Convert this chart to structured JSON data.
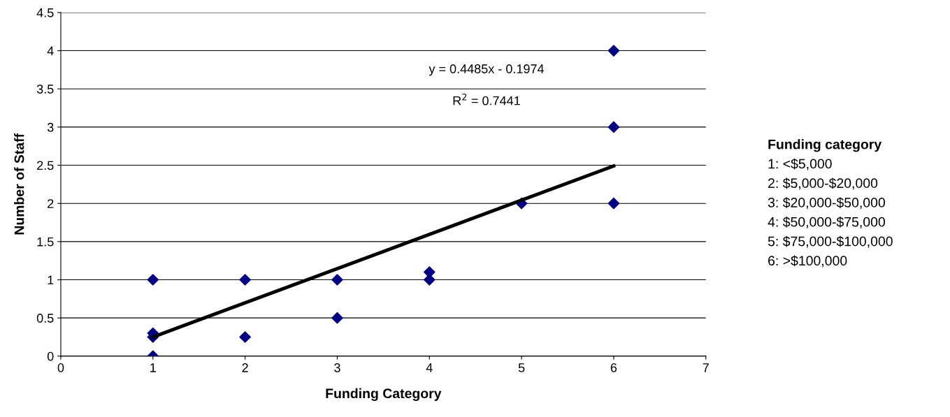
{
  "chart_data": {
    "type": "scatter",
    "xlabel": "Funding Category",
    "ylabel": "Number of Staff",
    "xlim": [
      0,
      7
    ],
    "xticks": [
      0,
      1,
      2,
      3,
      4,
      5,
      6,
      7
    ],
    "ylim": [
      0,
      4.5
    ],
    "yticks": [
      0,
      0.5,
      1,
      1.5,
      2,
      2.5,
      3,
      3.5,
      4,
      4.5
    ],
    "grid": "y",
    "marker": "diamond",
    "series": [
      {
        "color": "#000080",
        "x": [
          1,
          1,
          1,
          1,
          2,
          2,
          3,
          3,
          4,
          4,
          5,
          6,
          6,
          6
        ],
        "values": [
          1,
          0.3,
          0.25,
          0,
          1,
          0.25,
          1,
          0.5,
          1.1,
          1,
          2,
          4,
          3,
          2
        ]
      },
      {
        "type": "line",
        "color": "#000000",
        "marker": "none",
        "x": [
          1,
          6
        ],
        "values": [
          0.25,
          2.49
        ]
      }
    ],
    "annotations": [
      "y = 0.4485x - 0.1974",
      "R$^{2}$ = 0.7441",
      "Funding category",
      "1: <$5,000",
      "2: $5,000-$20,000",
      "3: $20,000-$50,000",
      "4: $50,000-$75,000",
      "5: $75,000-$100,000",
      "6: >$100,000"
    ]
  }
}
